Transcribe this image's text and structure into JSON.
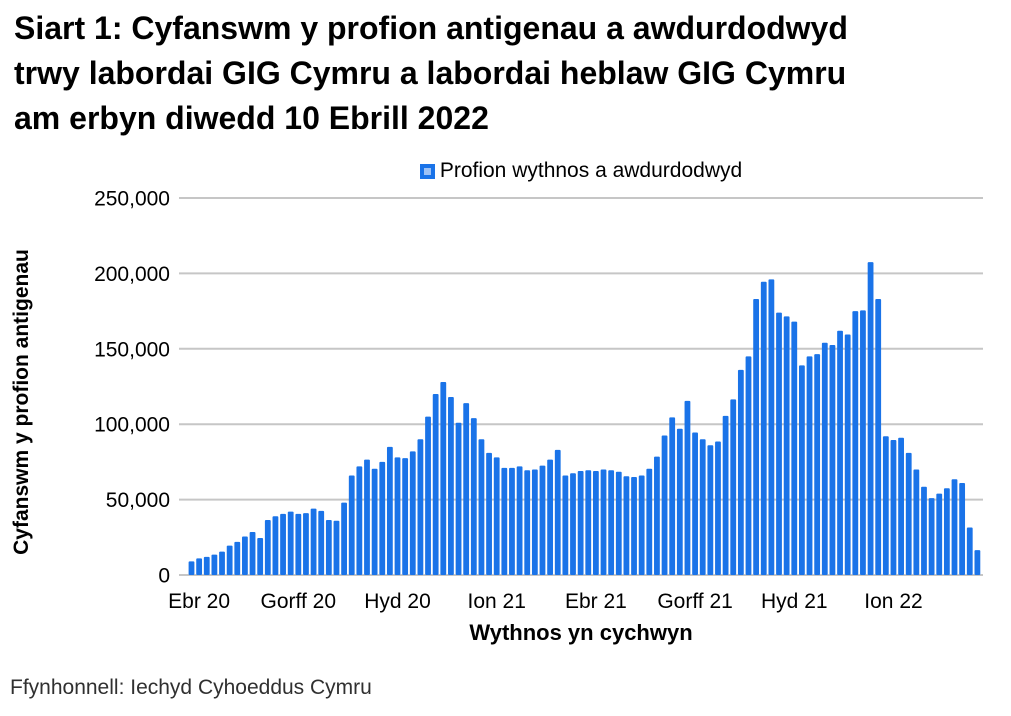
{
  "header": {
    "title": "Siart 1: Cyfanswm y profion antigenau a awdurdodwyd trwy labordai GIG Cymru a labordai heblaw GIG Cymru am erbyn diwedd 10 Ebrill 2022",
    "title_lines": [
      "Siart 1: Cyfanswm y profion antigenau a awdurdodwyd",
      "trwy labordai GIG Cymru a labordai heblaw GIG Cymru",
      "am erbyn diwedd 10 Ebrill 2022"
    ]
  },
  "legend": {
    "label": "Profion wythnos a awdurdodwyd"
  },
  "chart_data": {
    "type": "bar",
    "title": "Siart 1: Cyfanswm y profion antigenau a awdurdodwyd trwy labordai GIG Cymru a labordai heblaw GIG Cymru am erbyn diwedd 10 Ebrill 2022",
    "xlabel": "Wythnos yn cychwyn",
    "ylabel": "Cyfanswm y profion antigenau",
    "ylim": [
      0,
      250000
    ],
    "grid": true,
    "legend_position": "top",
    "y_ticks": [
      0,
      50000,
      100000,
      150000,
      200000,
      250000
    ],
    "y_tick_labels": [
      "0",
      "50,000",
      "100,000",
      "150,000",
      "200,000",
      "250,000"
    ],
    "x_tick_labels": [
      "Ebr 20",
      "Gorff 20",
      "Hyd 20",
      "Ion 21",
      "Ebr 21",
      "Gorff 21",
      "Hyd 21",
      "Ion 22"
    ],
    "x_tick_bar_indices": [
      2,
      15,
      28,
      41,
      54,
      67,
      80,
      93
    ],
    "series": [
      {
        "name": "Profion wythnos a awdurdodwyd",
        "values": [
          9000,
          11000,
          12000,
          13500,
          15500,
          19500,
          22000,
          25500,
          28500,
          24500,
          36500,
          39000,
          40500,
          42000,
          40500,
          41000,
          44000,
          42500,
          36500,
          36000,
          48000,
          66000,
          72000,
          76500,
          70500,
          75000,
          85000,
          78000,
          77500,
          82000,
          90000,
          105000,
          120000,
          128000,
          118000,
          101000,
          114000,
          104000,
          90000,
          81000,
          78000,
          71000,
          71000,
          72000,
          69500,
          70000,
          72500,
          76500,
          83000,
          66000,
          67500,
          69000,
          69500,
          69000,
          70000,
          69500,
          68500,
          65500,
          65000,
          66000,
          70500,
          78500,
          92500,
          104500,
          97000,
          115500,
          94500,
          90000,
          86000,
          88500,
          105500,
          116500,
          136000,
          145000,
          183000,
          194500,
          196000,
          174000,
          171500,
          168000,
          139000,
          145000,
          146500,
          154000,
          152500,
          162000,
          159500,
          175000,
          175500,
          207500,
          183000,
          92000,
          89500,
          91000,
          81000,
          70000,
          58500,
          51000,
          54000,
          57500,
          63500,
          61000,
          31500,
          16500
        ]
      }
    ],
    "bar_color": "#1a73e8"
  },
  "source": {
    "text": "Ffynhonnell: Iechyd Cyhoeddus Cymru"
  },
  "colors": {
    "bar": "#1a73e8",
    "legend_inner": "#9dc2f6",
    "gridline": "#c6c6c6",
    "axis_text": "#000000",
    "source_text": "#303030"
  }
}
